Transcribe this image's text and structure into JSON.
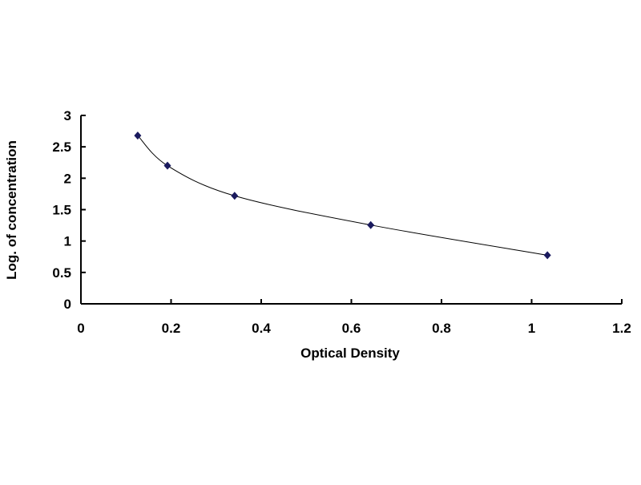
{
  "chart_data": {
    "type": "line",
    "title": "",
    "xlabel": "Optical Density",
    "ylabel": "Log. of concentration",
    "xlim": [
      0,
      1.2
    ],
    "ylim": [
      0,
      3
    ],
    "x_ticks": [
      "0",
      "0.2",
      "0.4",
      "0.6",
      "0.8",
      "1",
      "1.2"
    ],
    "y_ticks": [
      "0",
      "0.5",
      "1",
      "1.5",
      "2",
      "2.5",
      "3"
    ],
    "grid": false,
    "legend": "none",
    "smooth": true,
    "marker": "diamond",
    "marker_color": "#1a1a5e",
    "line_color": "#000000",
    "series": [
      {
        "x": [
          0.126,
          0.192,
          0.341,
          0.643,
          1.035
        ],
        "y": [
          2.68,
          2.2,
          1.72,
          1.255,
          0.774
        ]
      }
    ]
  }
}
